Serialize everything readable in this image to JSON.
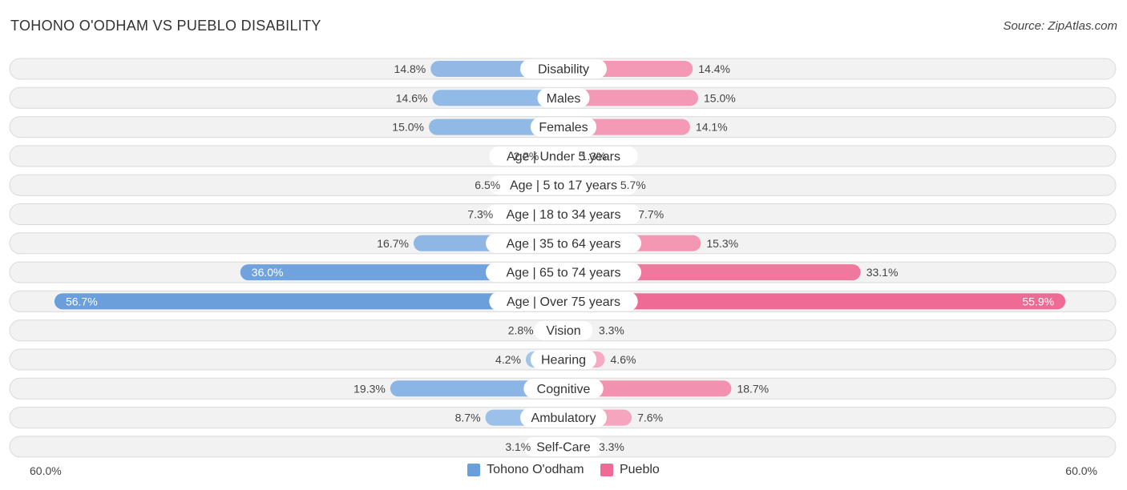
{
  "header": {
    "title": "TOHONO O'ODHAM VS PUEBLO DISABILITY",
    "source": "Source: ZipAtlas.com"
  },
  "colors": {
    "left_light": "#a9c9ec",
    "left_dark": "#6a9fdc",
    "right_light": "#f6b3c8",
    "right_dark": "#ef6b95"
  },
  "axis": {
    "left_label": "60.0%",
    "right_label": "60.0%"
  },
  "legend": {
    "left": "Tohono O'odham",
    "right": "Pueblo"
  },
  "chart_data": {
    "type": "bar",
    "orientation": "diverging-horizontal",
    "title": "TOHONO O'ODHAM VS PUEBLO DISABILITY",
    "xlim": [
      0,
      60
    ],
    "categories": [
      "Disability",
      "Males",
      "Females",
      "Age | Under 5 years",
      "Age | 5 to 17 years",
      "Age | 18 to 34 years",
      "Age | 35 to 64 years",
      "Age | 65 to 74 years",
      "Age | Over 75 years",
      "Vision",
      "Hearing",
      "Cognitive",
      "Ambulatory",
      "Self-Care"
    ],
    "series": [
      {
        "name": "Tohono O'odham",
        "values": [
          14.8,
          14.6,
          15.0,
          2.2,
          6.5,
          7.3,
          16.7,
          36.0,
          56.7,
          2.8,
          4.2,
          19.3,
          8.7,
          3.1
        ],
        "labels": [
          "14.8%",
          "14.6%",
          "15.0%",
          "2.2%",
          "6.5%",
          "7.3%",
          "16.7%",
          "36.0%",
          "56.7%",
          "2.8%",
          "4.2%",
          "19.3%",
          "8.7%",
          "3.1%"
        ]
      },
      {
        "name": "Pueblo",
        "values": [
          14.4,
          15.0,
          14.1,
          1.3,
          5.7,
          7.7,
          15.3,
          33.1,
          55.9,
          3.3,
          4.6,
          18.7,
          7.6,
          3.3
        ],
        "labels": [
          "14.4%",
          "15.0%",
          "14.1%",
          "1.3%",
          "5.7%",
          "7.7%",
          "15.3%",
          "33.1%",
          "55.9%",
          "3.3%",
          "4.6%",
          "18.7%",
          "7.6%",
          "3.3%"
        ]
      }
    ]
  }
}
